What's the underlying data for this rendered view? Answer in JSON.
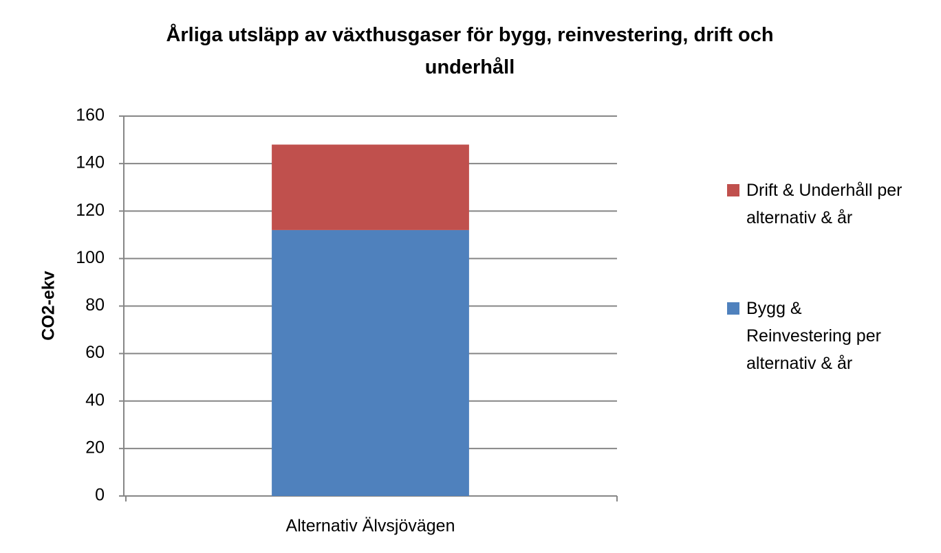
{
  "chart_data": {
    "type": "stacked_bar",
    "title": "Årliga utsläpp av växthusgaser för bygg, reinvestering, drift och underhåll",
    "y_label": "CO2-ekv",
    "categories": [
      "Alternativ Älvsjövägen"
    ],
    "series": [
      {
        "name": "Bygg & Reinvestering per alternativ & år",
        "color": "#4f81bd",
        "values": [
          112
        ]
      },
      {
        "name": "Drift & Underhåll per alternativ & år",
        "color": "#c0504d",
        "values": [
          36
        ]
      }
    ],
    "ylim": [
      0,
      160
    ],
    "yticks": [
      0,
      20,
      40,
      60,
      80,
      100,
      120,
      140,
      160
    ],
    "grid": true,
    "legend": "right"
  }
}
